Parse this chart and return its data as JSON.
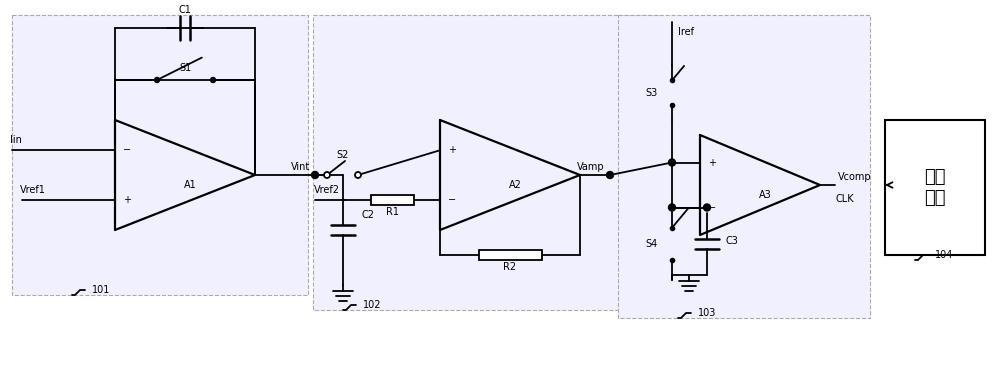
{
  "background_color": "#ffffff",
  "line_color": "#000000",
  "box_fill": "#f0f0ff",
  "box_edge": "#aaaaaa",
  "figsize": [
    10.0,
    3.67
  ],
  "dpi": 100,
  "labels": {
    "Iin": "Iin",
    "Vref1": "Vref1",
    "C1": "C1",
    "S1": "S1",
    "A1": "A1",
    "Vint": "Vint",
    "S2": "S2",
    "C2": "C2",
    "Vref2": "Vref2",
    "R1": "R1",
    "A2": "A2",
    "R2": "R2",
    "Vamp": "Vamp",
    "Iref": "Iref",
    "S3": "S3",
    "S4": "S4",
    "C3": "C3",
    "A3": "A3",
    "Vcomp": "Vcomp",
    "CLK": "CLK",
    "box101": "101",
    "box102": "102",
    "box103": "103",
    "box104": "104",
    "counter": "计数\n电路"
  }
}
